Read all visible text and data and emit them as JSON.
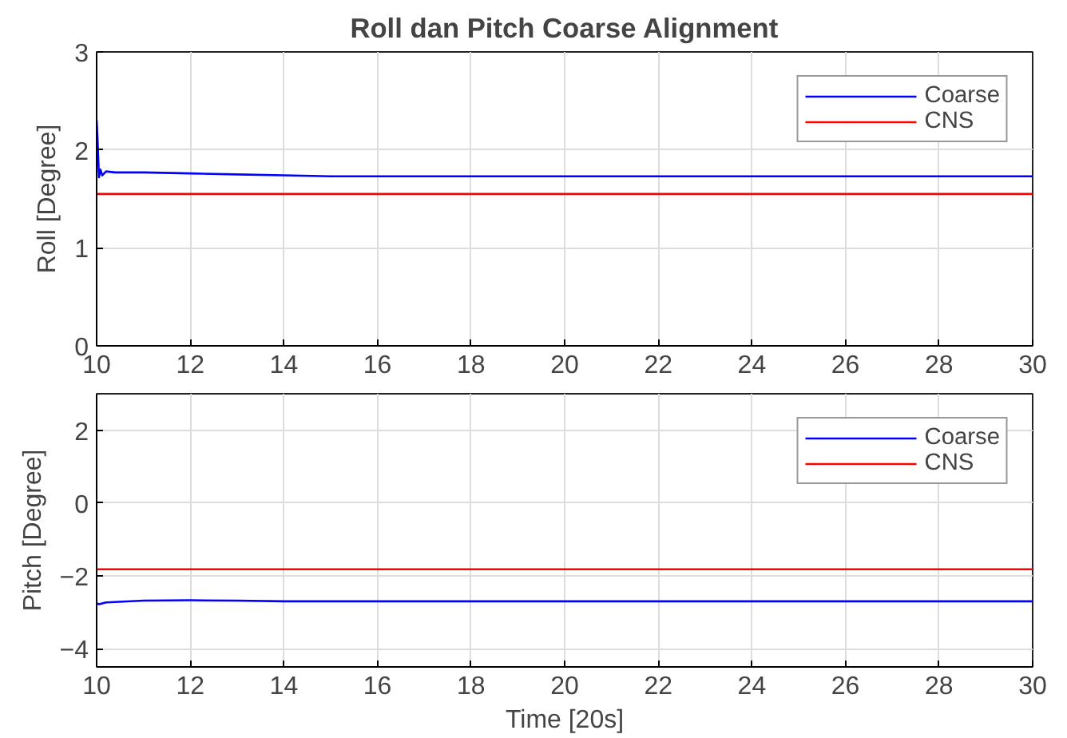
{
  "chart_data": [
    {
      "type": "line",
      "title": "Roll dan Pitch Coarse Alignment",
      "ylabel": "Roll [Degree]",
      "xlim": [
        10,
        30
      ],
      "xticks": [
        10,
        12,
        14,
        16,
        18,
        20,
        22,
        24,
        26,
        28,
        30
      ],
      "ylim": [
        0,
        3
      ],
      "yticks": [
        0,
        1,
        2,
        3
      ],
      "grid": true,
      "legend": "top right",
      "series": [
        {
          "name": "Coarse",
          "color": "#0000ff",
          "x": [
            10,
            10.02,
            10.05,
            10.08,
            10.12,
            10.2,
            10.4,
            11,
            12,
            13,
            14,
            15,
            20,
            25,
            30
          ],
          "values": [
            2.3,
            2.1,
            1.72,
            1.8,
            1.74,
            1.78,
            1.77,
            1.77,
            1.76,
            1.75,
            1.74,
            1.73,
            1.73,
            1.73,
            1.73
          ]
        },
        {
          "name": "CNS",
          "color": "#ff0000",
          "x": [
            10,
            15,
            20,
            25,
            30
          ],
          "values": [
            1.55,
            1.55,
            1.55,
            1.55,
            1.55
          ]
        }
      ]
    },
    {
      "type": "line",
      "xlabel": "Time [20s]",
      "ylabel": "Pitch [Degree]",
      "xlim": [
        10,
        30
      ],
      "xticks": [
        10,
        12,
        14,
        16,
        18,
        20,
        22,
        24,
        26,
        28,
        30
      ],
      "ylim": [
        -4.5,
        3
      ],
      "yticks": [
        -4,
        -2,
        0,
        2
      ],
      "grid": true,
      "legend": "top right",
      "series": [
        {
          "name": "Coarse",
          "color": "#0000ff",
          "x": [
            10,
            10.05,
            10.2,
            11,
            12,
            13,
            14,
            20,
            25,
            30
          ],
          "values": [
            -2.75,
            -2.78,
            -2.73,
            -2.68,
            -2.67,
            -2.68,
            -2.7,
            -2.7,
            -2.7,
            -2.7
          ]
        },
        {
          "name": "CNS",
          "color": "#ff0000",
          "x": [
            10,
            15,
            20,
            25,
            30
          ],
          "values": [
            -1.82,
            -1.82,
            -1.82,
            -1.82,
            -1.82
          ]
        }
      ]
    }
  ]
}
